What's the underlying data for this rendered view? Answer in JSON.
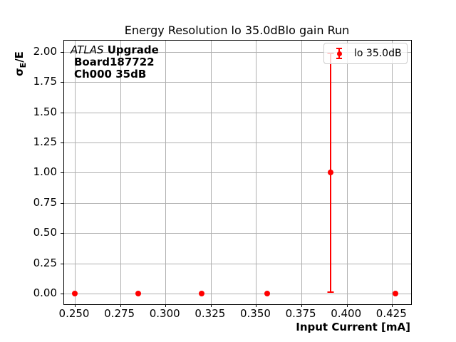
{
  "figure": {
    "title": "Energy Resolution lo 35.0dBlo gain Run",
    "xlabel": "Input Current [mA]",
    "ylabel_sigma": "σ",
    "ylabel_sub": "E",
    "ylabel_rest": "/E"
  },
  "annotation": {
    "line1_italic": "ATLAS",
    "line1_bold": " Upgrade",
    "line2": "Board187722",
    "line3": "Ch000 35dB"
  },
  "legend": {
    "label": "lo 35.0dB"
  },
  "colors": {
    "series": "#ff0000",
    "grid": "#b0b0b0",
    "spine": "#000000",
    "legend_border": "#cccccc"
  },
  "chart_data": {
    "type": "scatter",
    "title": "Energy Resolution lo 35.0dBlo gain Run",
    "xlabel": "Input Current [mA]",
    "ylabel": "σ_E/E",
    "grid": true,
    "legend_position": "upper right",
    "xlim": [
      0.2441,
      0.4355
    ],
    "ylim": [
      -0.089,
      2.094
    ],
    "x_ticks": [
      0.25,
      0.275,
      0.3,
      0.325,
      0.35,
      0.375,
      0.4,
      0.425
    ],
    "x_tick_labels": [
      "0.250",
      "0.275",
      "0.300",
      "0.325",
      "0.350",
      "0.375",
      "0.400",
      "0.425"
    ],
    "y_ticks": [
      0.0,
      0.25,
      0.5,
      0.75,
      1.0,
      1.25,
      1.5,
      1.75,
      2.0
    ],
    "y_tick_labels": [
      "0.00",
      "0.25",
      "0.50",
      "0.75",
      "1.00",
      "1.25",
      "1.50",
      "1.75",
      "2.00"
    ],
    "series": [
      {
        "name": "lo 35.0dB",
        "color": "#ff0000",
        "points": [
          {
            "x": 0.25,
            "y": 0.0,
            "yerr": 0.0
          },
          {
            "x": 0.285,
            "y": 0.0,
            "yerr": 0.0
          },
          {
            "x": 0.32,
            "y": 0.0,
            "yerr": 0.0
          },
          {
            "x": 0.356,
            "y": 0.0,
            "yerr": 0.0
          },
          {
            "x": 0.391,
            "y": 1.0,
            "yerr": 0.99
          },
          {
            "x": 0.427,
            "y": 0.0,
            "yerr": 0.0
          }
        ]
      }
    ]
  }
}
